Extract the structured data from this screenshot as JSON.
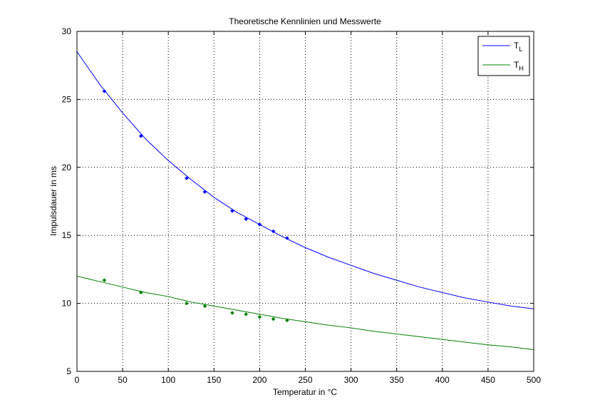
{
  "chart_data": {
    "type": "line",
    "title": "Theoretische Kennlinien und Messwerte",
    "xlabel": "Temperatur in °C",
    "ylabel": "Impulsdauer in ms",
    "xlim": [
      0,
      500
    ],
    "ylim": [
      5,
      30
    ],
    "xticks": [
      0,
      50,
      100,
      150,
      200,
      250,
      300,
      350,
      400,
      450,
      500
    ],
    "yticks": [
      5,
      10,
      15,
      20,
      25,
      30
    ],
    "grid": true,
    "legend_position": "top-right",
    "series": [
      {
        "name_main": "T",
        "name_sub": "L",
        "color": "#0000ff",
        "curve": {
          "x": [
            0,
            25,
            50,
            75,
            100,
            125,
            150,
            175,
            200,
            225,
            250,
            275,
            300,
            325,
            350,
            375,
            400,
            425,
            450,
            475,
            500
          ],
          "y": [
            28.5,
            26.1,
            24.0,
            22.1,
            20.5,
            19.1,
            17.8,
            16.7,
            15.8,
            14.9,
            14.1,
            13.4,
            12.8,
            12.2,
            11.7,
            11.2,
            10.8,
            10.4,
            10.1,
            9.8,
            9.6
          ]
        },
        "points": {
          "x": [
            30,
            70,
            120,
            140,
            170,
            185,
            200,
            215,
            230
          ],
          "y": [
            25.6,
            22.3,
            19.2,
            18.2,
            16.8,
            16.2,
            15.8,
            15.3,
            14.8
          ]
        }
      },
      {
        "name_main": "T",
        "name_sub": "H",
        "color": "#008000",
        "curve": {
          "x": [
            0,
            25,
            50,
            75,
            100,
            125,
            150,
            175,
            200,
            225,
            250,
            275,
            300,
            325,
            350,
            375,
            400,
            425,
            450,
            475,
            500
          ],
          "y": [
            12.0,
            11.6,
            11.2,
            10.8,
            10.5,
            10.1,
            9.8,
            9.5,
            9.2,
            8.9,
            8.65,
            8.4,
            8.2,
            7.95,
            7.75,
            7.55,
            7.35,
            7.15,
            6.95,
            6.8,
            6.6
          ]
        },
        "points": {
          "x": [
            30,
            70,
            120,
            140,
            170,
            185,
            200,
            215,
            230
          ],
          "y": [
            11.7,
            10.8,
            10.0,
            9.8,
            9.3,
            9.2,
            9.0,
            8.85,
            8.75
          ]
        }
      }
    ]
  }
}
